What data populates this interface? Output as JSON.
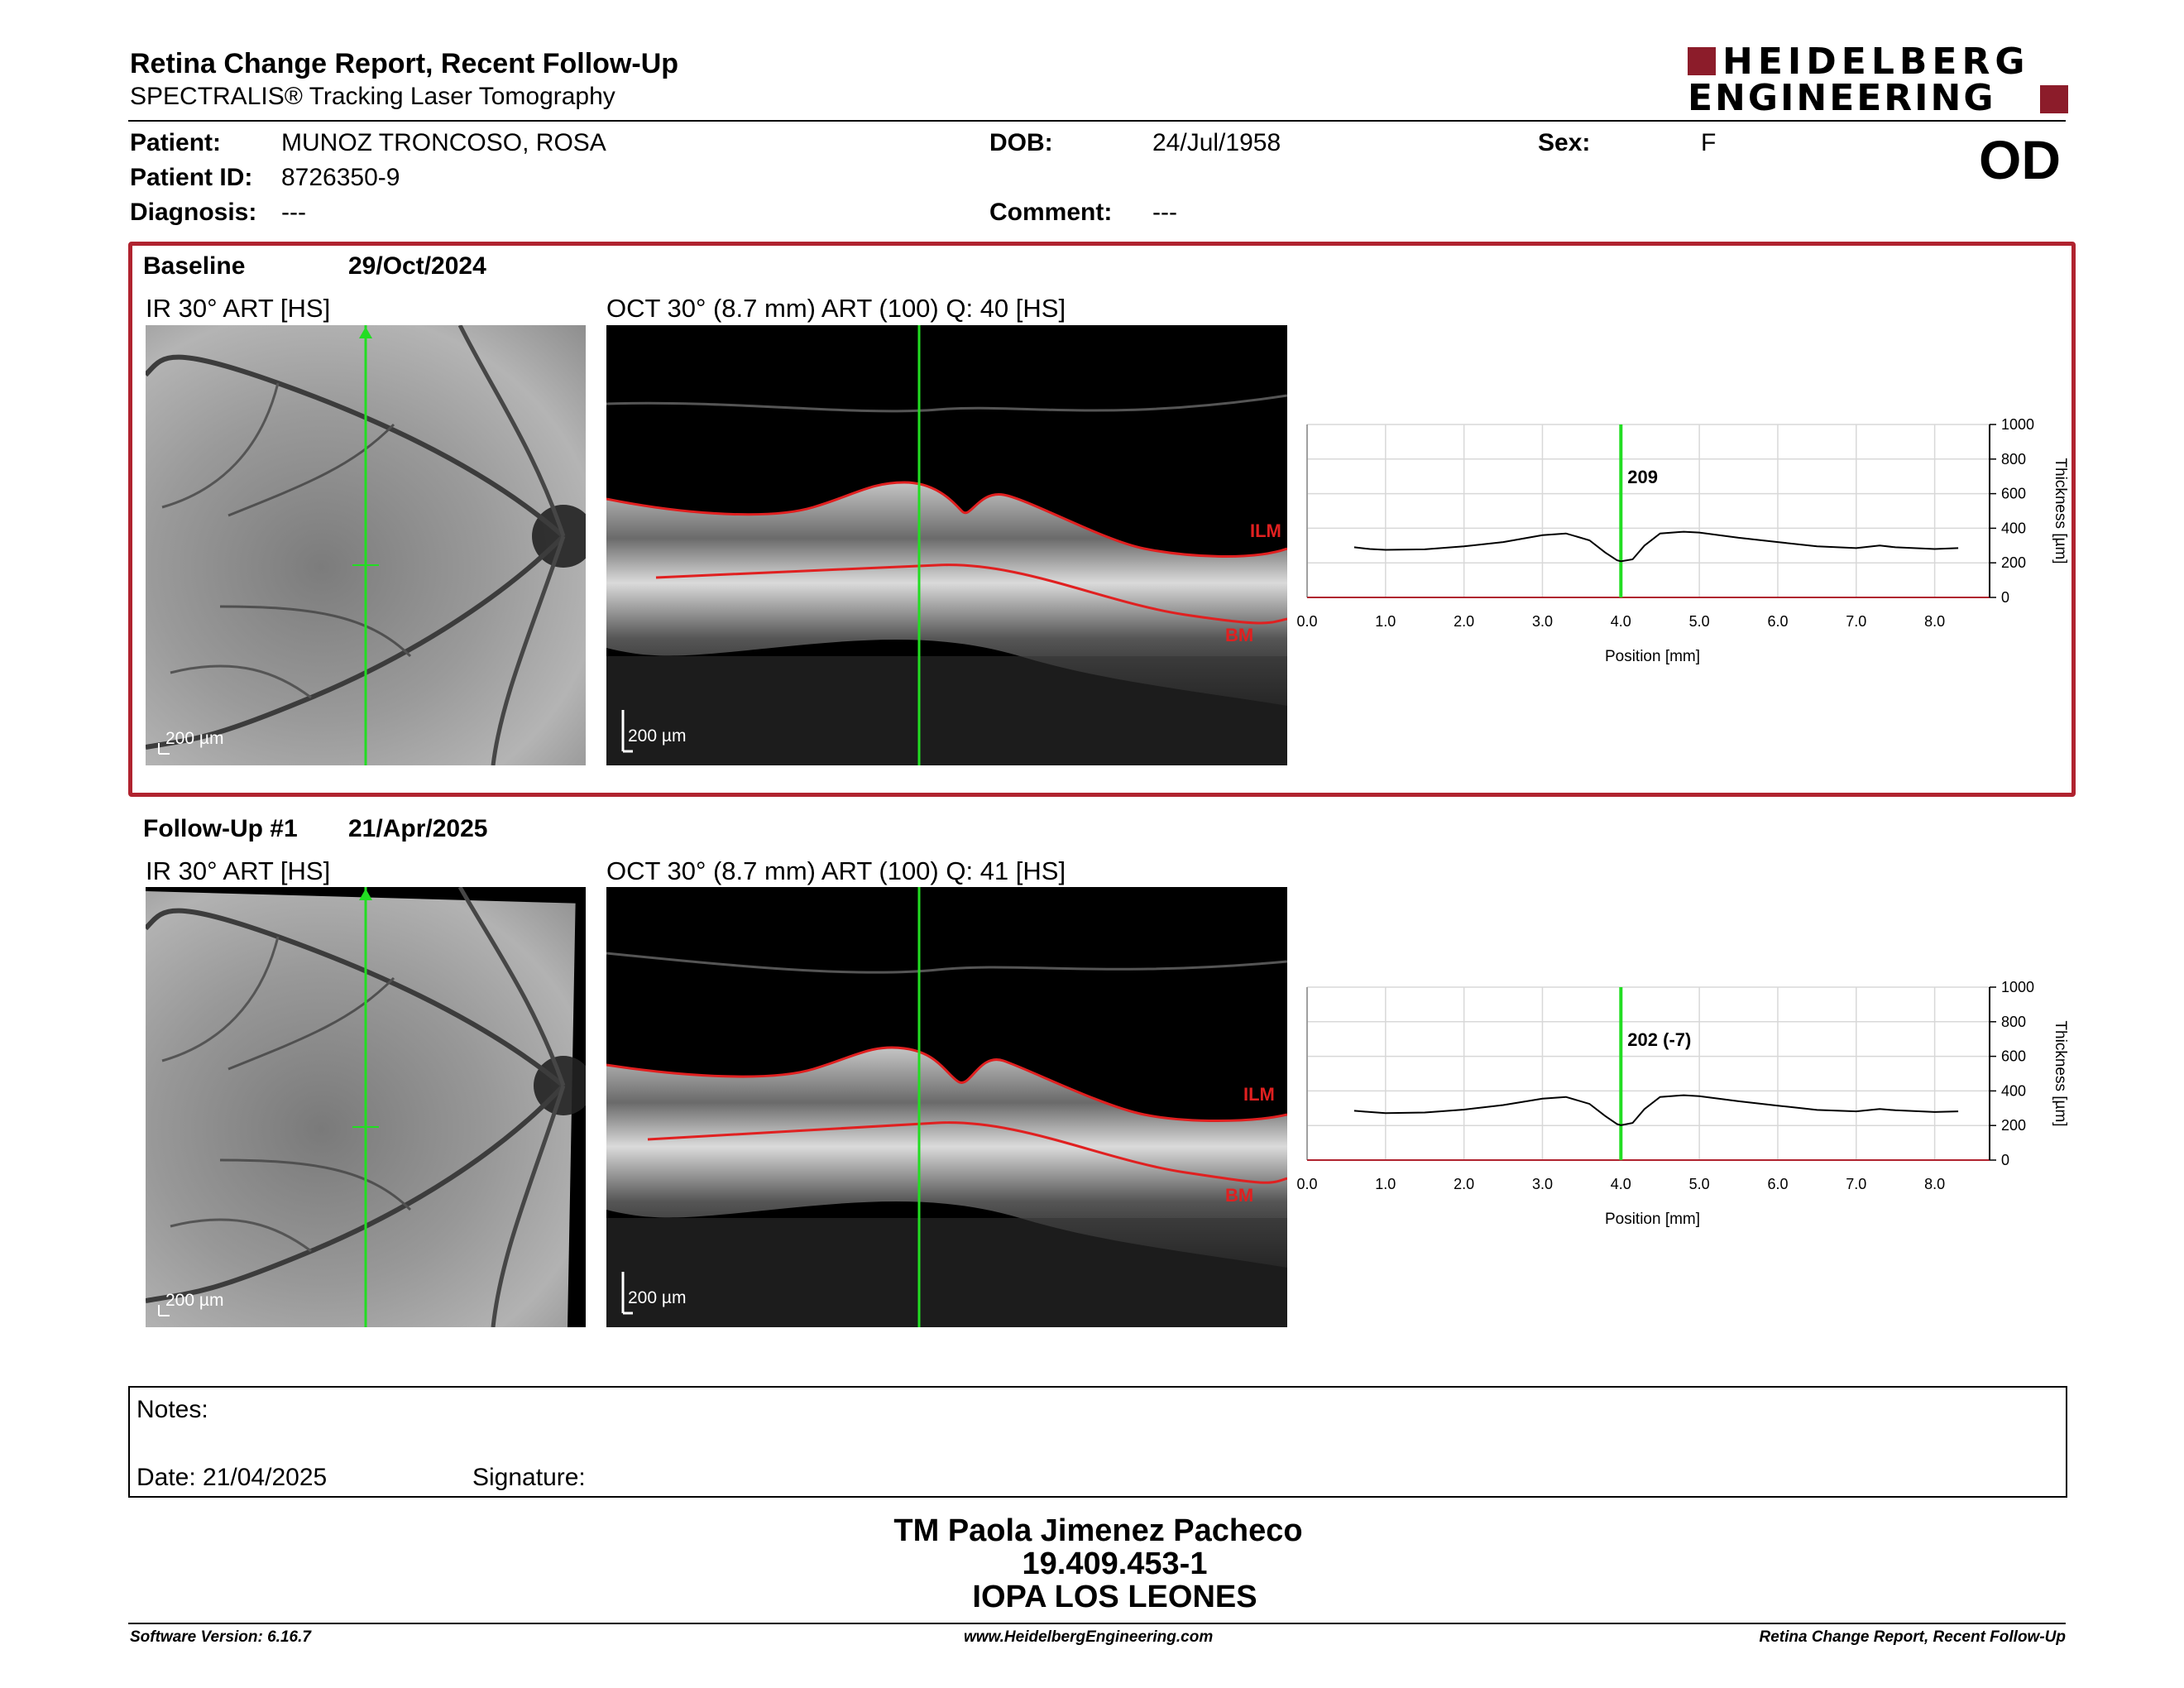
{
  "header": {
    "title": "Retina Change Report, Recent Follow-Up",
    "subtitle": "SPECTRALIS® Tracking Laser Tomography",
    "logo_line1": "HEIDELBERG",
    "logo_line2": "ENGINEERING",
    "eye": "OD"
  },
  "patient": {
    "patient_label": "Patient:",
    "patient_value": "MUNOZ TRONCOSO, ROSA",
    "id_label": "Patient ID:",
    "id_value": "8726350-9",
    "diagnosis_label": "Diagnosis:",
    "diagnosis_value": "---",
    "dob_label": "DOB:",
    "dob_value": "24/Jul/1958",
    "comment_label": "Comment:",
    "comment_value": "---",
    "sex_label": "Sex:",
    "sex_value": "F"
  },
  "exams": [
    {
      "name": "Baseline",
      "date": "29/Oct/2024",
      "ir_label": "IR 30° ART [HS]",
      "oct_label": "OCT 30° (8.7 mm) ART (100) Q: 40 [HS]",
      "scale_ir": "200 µm",
      "scale_oct": "200 µm",
      "ilm_label": "ILM",
      "bm_label": "BM",
      "center_value_label": "209"
    },
    {
      "name": "Follow-Up #1",
      "date": "21/Apr/2025",
      "ir_label": "IR 30° ART [HS]",
      "oct_label": "OCT 30° (8.7 mm) ART (100) Q: 41 [HS]",
      "scale_ir": "200 µm",
      "scale_oct": "200 µm",
      "ilm_label": "ILM",
      "bm_label": "BM",
      "center_value_label": "202 (-7)"
    }
  ],
  "chart_data": [
    {
      "type": "line",
      "xlabel": "Position [mm]",
      "ylabel": "Thickness [µm]",
      "xlim": [
        0.0,
        8.7
      ],
      "ylim": [
        0,
        1000
      ],
      "x_ticks": [
        "0.0",
        "1.0",
        "2.0",
        "3.0",
        "4.0",
        "5.0",
        "6.0",
        "7.0",
        "8.0"
      ],
      "y_ticks": [
        "0",
        "200",
        "400",
        "600",
        "800",
        "1000"
      ],
      "marker_x": 4.0,
      "marker_label": "209",
      "series": [
        {
          "x": [
            0.6,
            0.8,
            1.0,
            1.5,
            2.0,
            2.5,
            3.0,
            3.3,
            3.6,
            3.8,
            3.95,
            4.0,
            4.15,
            4.3,
            4.5,
            4.8,
            5.0,
            5.5,
            6.0,
            6.5,
            7.0,
            7.3,
            7.5,
            8.0,
            8.3
          ],
          "y": [
            290,
            280,
            275,
            278,
            295,
            320,
            360,
            370,
            330,
            260,
            215,
            209,
            220,
            300,
            370,
            380,
            375,
            345,
            320,
            295,
            285,
            300,
            290,
            280,
            285
          ]
        }
      ]
    },
    {
      "type": "line",
      "xlabel": "Position [mm]",
      "ylabel": "Thickness [µm]",
      "xlim": [
        0.0,
        8.7
      ],
      "ylim": [
        0,
        1000
      ],
      "x_ticks": [
        "0.0",
        "1.0",
        "2.0",
        "3.0",
        "4.0",
        "5.0",
        "6.0",
        "7.0",
        "8.0"
      ],
      "y_ticks": [
        "0",
        "200",
        "400",
        "600",
        "800",
        "1000"
      ],
      "marker_x": 4.0,
      "marker_label": "202 (-7)",
      "series": [
        {
          "x": [
            0.6,
            0.8,
            1.0,
            1.5,
            2.0,
            2.5,
            3.0,
            3.3,
            3.6,
            3.8,
            3.95,
            4.0,
            4.15,
            4.3,
            4.5,
            4.8,
            5.0,
            5.5,
            6.0,
            6.5,
            7.0,
            7.3,
            7.5,
            8.0,
            8.3
          ],
          "y": [
            285,
            278,
            272,
            275,
            292,
            318,
            355,
            365,
            325,
            255,
            208,
            202,
            215,
            295,
            365,
            375,
            370,
            340,
            315,
            290,
            282,
            295,
            288,
            278,
            282
          ]
        }
      ]
    }
  ],
  "notes": {
    "notes_label": "Notes:",
    "date_label": "Date: 21/04/2025",
    "signature_label": "Signature:"
  },
  "signer": {
    "name": "TM Paola Jimenez Pacheco",
    "rut": "19.409.453-1",
    "institution": "IOPA LOS LEONES"
  },
  "footer": {
    "software": "Software Version: 6.16.7",
    "website": "www.HeidelbergEngineering.com",
    "report": "Retina Change Report, Recent Follow-Up"
  },
  "colors": {
    "accent": "#b0232f",
    "scan_line": "#22dd22",
    "layer_line": "#e02020"
  }
}
